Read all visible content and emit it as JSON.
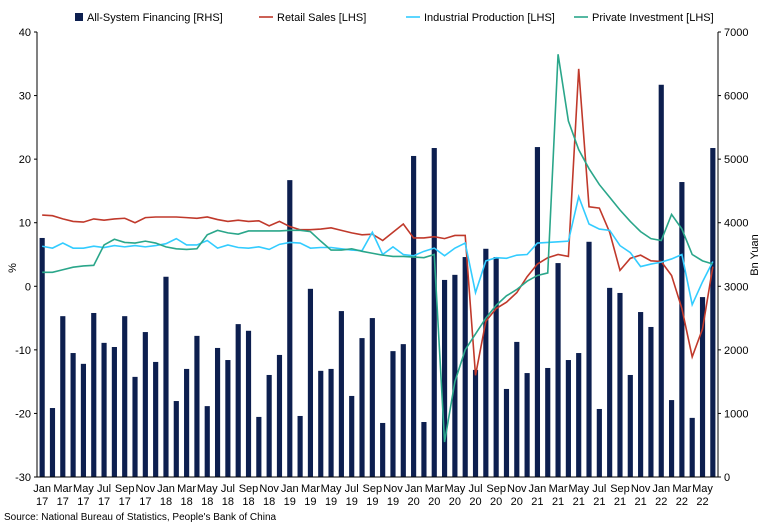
{
  "chart_data": {
    "type": "bar",
    "categories": [
      "Jan 17",
      null,
      "Mar 17",
      null,
      "May 17",
      null,
      "Jul 17",
      null,
      "Sep 17",
      null,
      "Nov 17",
      null,
      "Jan 18",
      null,
      "Mar 18",
      null,
      "May 18",
      null,
      "Jul 18",
      null,
      "Sep 18",
      null,
      "Nov 18",
      null,
      "Jan 19",
      null,
      "Mar 19",
      null,
      "May 19",
      null,
      "Jul 19",
      null,
      "Sep 19",
      null,
      "Nov 19",
      null,
      "Jan 20",
      null,
      "Mar 20",
      null,
      "May 20",
      null,
      "Jul 20",
      null,
      "Sep 20",
      null,
      "Nov 20",
      null,
      "Jan 21",
      null,
      "Mar 21",
      null,
      "May 21",
      null,
      "Jul 21",
      null,
      "Sep 21",
      null,
      "Nov 21",
      null,
      "Jan 22",
      null,
      "Mar 22",
      null,
      "May 22",
      null
    ],
    "series": [
      {
        "name": "All-System Financing [RHS]",
        "type": "bar",
        "axis": "y2",
        "color": "#0d1f4f",
        "values": [
          3760,
          1085,
          2530,
          1950,
          1780,
          2580,
          2110,
          2045,
          2530,
          1575,
          2280,
          1810,
          3150,
          1195,
          1700,
          2220,
          1115,
          2030,
          1840,
          2405,
          2300,
          945,
          1605,
          1920,
          4670,
          960,
          2960,
          1670,
          1700,
          2610,
          1275,
          2185,
          2500,
          850,
          1980,
          2090,
          5050,
          865,
          5175,
          3100,
          3180,
          3460,
          1685,
          3590,
          3460,
          1385,
          2125,
          1635,
          5190,
          1715,
          3365,
          1840,
          1950,
          3700,
          1070,
          2975,
          2895,
          1605,
          2595,
          2360,
          6170,
          1210,
          4640,
          930,
          2830,
          5175
        ]
      },
      {
        "name": "Retail Sales [LHS]",
        "type": "line",
        "color": "#c0392b",
        "values": [
          11.2,
          11.1,
          10.6,
          10.2,
          10.1,
          10.6,
          10.4,
          10.6,
          10.7,
          10.0,
          10.8,
          10.9,
          10.9,
          10.9,
          10.8,
          10.7,
          10.9,
          10.5,
          10.2,
          10.4,
          10.2,
          10.3,
          9.5,
          10.2,
          9.4,
          8.9,
          8.9,
          9.0,
          9.2,
          8.8,
          8.4,
          8.1,
          8.2,
          7.2,
          8.5,
          9.8,
          7.6,
          7.6,
          7.8,
          7.5,
          8.0,
          8.0,
          -14.0,
          -5.5,
          -3.5,
          -2.5,
          -1.0,
          1.5,
          3.5,
          4.5,
          5.0,
          4.7,
          34.2,
          12.5,
          12.3,
          8.5,
          2.5,
          4.4,
          4.9,
          4.0,
          3.9,
          1.7,
          -3.5,
          -11.1,
          -6.7,
          3.1
        ]
      },
      {
        "name": "Industrial Production [LHS]",
        "type": "line",
        "color": "#33ccff",
        "values": [
          6.3,
          6.0,
          6.8,
          6.0,
          6.0,
          6.3,
          6.1,
          6.4,
          6.2,
          6.4,
          6.2,
          6.4,
          6.7,
          7.5,
          6.5,
          6.5,
          7.2,
          6.0,
          6.5,
          6.1,
          6.0,
          6.2,
          5.8,
          6.6,
          6.9,
          6.8,
          6.0,
          6.1,
          6.1,
          5.9,
          5.7,
          5.6,
          8.5,
          5.0,
          6.2,
          5.0,
          4.8,
          5.5,
          6.0,
          4.8,
          6.0,
          6.8,
          -1.0,
          4.0,
          4.5,
          4.4,
          4.9,
          5.0,
          6.8,
          6.9,
          7.0,
          7.1,
          14.1,
          9.8,
          9.0,
          8.8,
          6.4,
          5.3,
          3.1,
          3.5,
          3.8,
          4.3,
          5.0,
          -2.9,
          0.7,
          3.9
        ]
      },
      {
        "name": "Private Investment [LHS]",
        "type": "line",
        "color": "#2aa68a",
        "values": [
          2.2,
          2.2,
          2.6,
          3.0,
          3.2,
          3.3,
          6.5,
          7.4,
          6.9,
          6.8,
          7.1,
          6.8,
          6.2,
          5.9,
          5.8,
          5.9,
          8.1,
          8.8,
          8.4,
          8.2,
          8.7,
          8.7,
          8.7,
          8.7,
          8.8,
          8.8,
          8.6,
          7.1,
          5.7,
          5.7,
          5.9,
          5.5,
          5.2,
          4.9,
          4.7,
          4.7,
          4.6,
          4.5,
          5.0,
          -24.5,
          -15.0,
          -10.0,
          -7.5,
          -5.0,
          -3.0,
          -1.5,
          -0.5,
          0.8,
          1.7,
          2.1,
          36.5,
          26.0,
          21.5,
          18.5,
          16.0,
          14.0,
          12.0,
          10.2,
          8.6,
          7.5,
          7.2,
          11.3,
          9.0,
          5.0,
          4.0,
          3.5
        ]
      }
    ],
    "ylabel": "%",
    "y2label": "Bn Yuan",
    "ylim": [
      -30,
      40
    ],
    "yticks": [
      -30,
      -20,
      -10,
      0,
      10,
      20,
      30,
      40
    ],
    "y2lim": [
      0,
      7000
    ],
    "y2ticks": [
      0,
      1000,
      2000,
      3000,
      4000,
      5000,
      6000,
      7000
    ],
    "legend": "top",
    "source": "Source: National Bureau of Statistics, People's Bank of China"
  }
}
